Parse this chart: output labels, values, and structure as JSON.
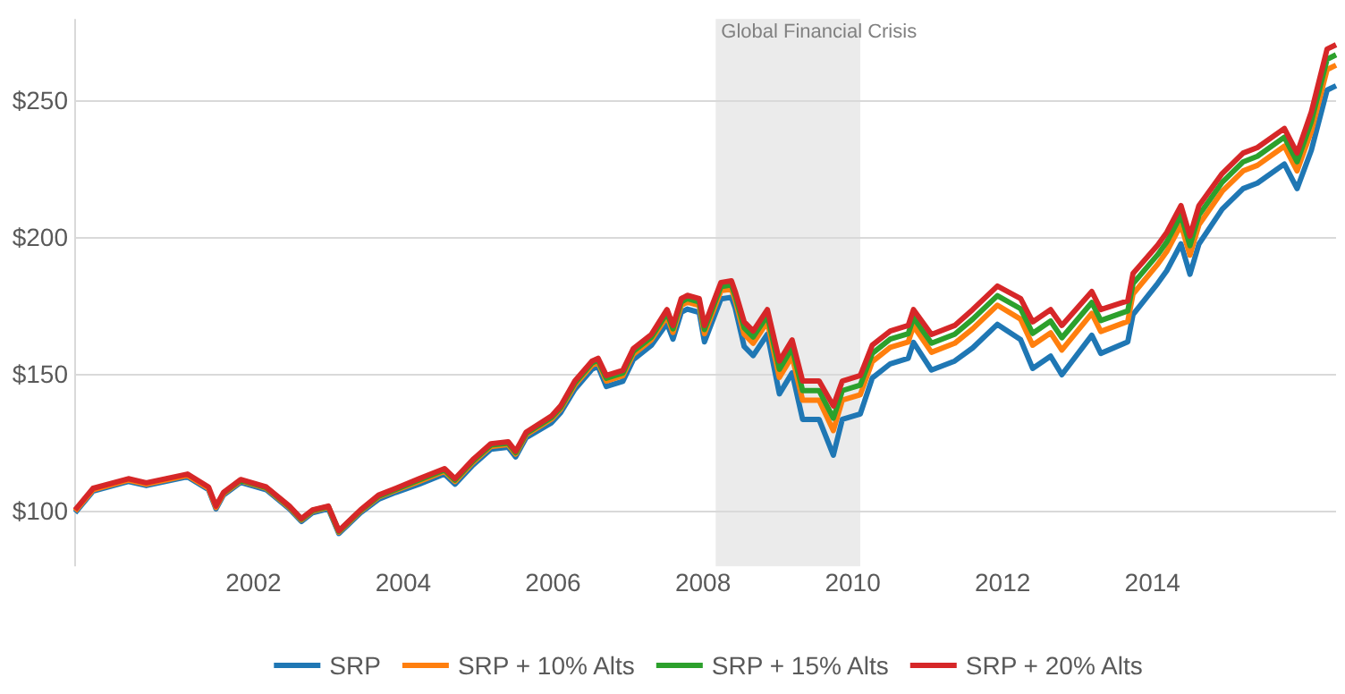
{
  "chart_data": {
    "type": "line",
    "x": [
      1999.62,
      1999.86,
      2000.33,
      2000.57,
      2001.12,
      2001.4,
      2001.5,
      2001.6,
      2001.83,
      2002.17,
      2002.48,
      2002.64,
      2002.79,
      2003.0,
      2003.14,
      2003.43,
      2003.67,
      2003.9,
      2004.21,
      2004.55,
      2004.69,
      2004.93,
      2005.17,
      2005.4,
      2005.5,
      2005.64,
      2005.98,
      2006.1,
      2006.29,
      2006.52,
      2006.6,
      2006.71,
      2006.93,
      2007.07,
      2007.31,
      2007.52,
      2007.6,
      2007.71,
      2007.79,
      2007.95,
      2008.02,
      2008.24,
      2008.38,
      2008.43,
      2008.55,
      2008.67,
      2008.86,
      2009.02,
      2009.19,
      2009.33,
      2009.55,
      2009.74,
      2009.86,
      2010.1,
      2010.26,
      2010.5,
      2010.74,
      2010.81,
      2011.05,
      2011.36,
      2011.6,
      2011.93,
      2012.24,
      2012.4,
      2012.64,
      2012.79,
      2013.19,
      2013.31,
      2013.67,
      2013.74,
      2014.07,
      2014.19,
      2014.38,
      2014.5,
      2014.62,
      2014.93,
      2015.21,
      2015.4,
      2015.76,
      2015.93,
      2016.12,
      2016.33,
      2016.45
    ],
    "series": [
      {
        "name": "SRP",
        "color": "#1f77b4",
        "values": [
          99.6,
          107.5,
          111,
          109.5,
          112.7,
          108,
          101,
          106,
          110.7,
          108,
          101,
          96.4,
          99.6,
          101,
          92,
          99.6,
          104.5,
          107,
          110,
          113.7,
          110,
          117,
          122.8,
          123.5,
          120,
          127,
          132.5,
          136.1,
          144.7,
          152,
          153,
          145.7,
          147.6,
          155.5,
          160.7,
          168.8,
          163,
          172.8,
          174,
          172.8,
          162,
          177.7,
          178.3,
          174.4,
          160.3,
          157,
          164.8,
          143,
          150.7,
          133.7,
          133.7,
          120.6,
          133.7,
          135.7,
          148.8,
          154,
          156,
          161.8,
          151.7,
          155,
          159.8,
          168.4,
          162.8,
          152.3,
          156.8,
          150,
          164.4,
          157.8,
          162,
          172,
          183.4,
          188,
          197.8,
          186.7,
          197.8,
          210.5,
          218,
          220,
          227,
          218,
          232,
          254,
          255.6
        ]
      },
      {
        "name": "SRP + 10% Alts",
        "color": "#ff7f0e",
        "values": [
          100.1,
          108,
          111.5,
          110,
          113.2,
          108.5,
          101.5,
          106.5,
          111.2,
          108.5,
          101.5,
          96.9,
          100.1,
          101.5,
          92.5,
          100.1,
          105.3,
          107.8,
          111,
          114.7,
          111,
          118,
          123.8,
          124.5,
          121,
          128,
          133.8,
          137.4,
          146.2,
          153.5,
          154.5,
          147.7,
          149.6,
          157.5,
          162.7,
          171.3,
          165.5,
          175.3,
          176.5,
          175.3,
          165,
          180.7,
          181.3,
          177.4,
          164.8,
          161.5,
          169.3,
          149,
          156.7,
          140.7,
          140.7,
          129.6,
          140.7,
          142.7,
          154.8,
          160,
          162,
          167.8,
          158.2,
          161.5,
          166.8,
          175.4,
          170.3,
          160.8,
          165.3,
          159,
          172.4,
          165.8,
          169.5,
          179.5,
          190.4,
          195,
          204.8,
          193.7,
          204.8,
          217,
          224.5,
          226.5,
          233.5,
          224.5,
          239,
          261.5,
          263.1
        ]
      },
      {
        "name": "SRP + 15% Alts",
        "color": "#2ca02c",
        "values": [
          null,
          null,
          null,
          null,
          null,
          null,
          null,
          106.8,
          111.5,
          108.8,
          101.8,
          97.2,
          100.4,
          101.8,
          92.8,
          100.4,
          105.6,
          108.1,
          111.5,
          115.2,
          111.5,
          118.5,
          124.3,
          125,
          121.5,
          128.5,
          134.4,
          138,
          147,
          154.3,
          155.3,
          148.7,
          150.6,
          158.5,
          163.7,
          172.6,
          166.8,
          176.6,
          177.8,
          176.6,
          166.5,
          182.2,
          182.8,
          178.9,
          167.1,
          163.8,
          171.6,
          152,
          159.7,
          144.2,
          144.2,
          134.1,
          144.2,
          146.2,
          157.8,
          163,
          165,
          170.8,
          161.5,
          164.8,
          170.3,
          178.9,
          174.1,
          165.1,
          169.6,
          163.5,
          176.4,
          169.8,
          173.3,
          183.3,
          193.9,
          198.5,
          208.3,
          197.2,
          208.3,
          220.3,
          227.8,
          229.8,
          236.8,
          227.8,
          242.5,
          265.3,
          266.9
        ]
      },
      {
        "name": "SRP + 20% Alts",
        "color": "#d62728",
        "values": [
          100.6,
          108.5,
          112,
          110.5,
          113.7,
          109,
          102,
          107,
          111.7,
          109,
          102,
          97.4,
          100.6,
          102,
          93,
          100.6,
          106,
          108.5,
          112,
          115.7,
          112,
          119,
          124.8,
          125.5,
          122,
          129,
          135,
          138.6,
          147.7,
          155,
          156,
          149.7,
          151.6,
          159.5,
          164.7,
          173.8,
          168,
          177.8,
          179,
          177.8,
          168,
          183.7,
          184.3,
          180.4,
          169.3,
          166,
          173.8,
          155,
          162.7,
          147.7,
          147.7,
          138.6,
          147.7,
          149.7,
          160.8,
          166,
          168,
          173.8,
          164.7,
          168,
          173.8,
          182.4,
          177.8,
          169.3,
          173.8,
          168,
          180.4,
          173.8,
          177,
          187,
          197.4,
          202,
          211.8,
          200.7,
          211.8,
          223.5,
          231,
          233,
          240,
          231,
          246,
          269,
          270.6
        ]
      }
    ],
    "xlim": [
      1999.62,
      2016.45
    ],
    "xticks": [
      2002,
      2004,
      2006,
      2008,
      2010,
      2012,
      2014
    ],
    "ylim": [
      80,
      280
    ],
    "yticks": [
      {
        "value": 100,
        "label": "$100"
      },
      {
        "value": 150,
        "label": "$150"
      },
      {
        "value": 200,
        "label": "$200"
      },
      {
        "value": 250,
        "label": "$250"
      }
    ],
    "bands": [
      {
        "axis": "x",
        "from": 2008.17,
        "to": 2010.1,
        "label": "Global Financial Crisis",
        "color": "#ebebeb"
      }
    ],
    "grid": "y",
    "legend": "bottom",
    "line_style": "solid",
    "marker": "none"
  }
}
